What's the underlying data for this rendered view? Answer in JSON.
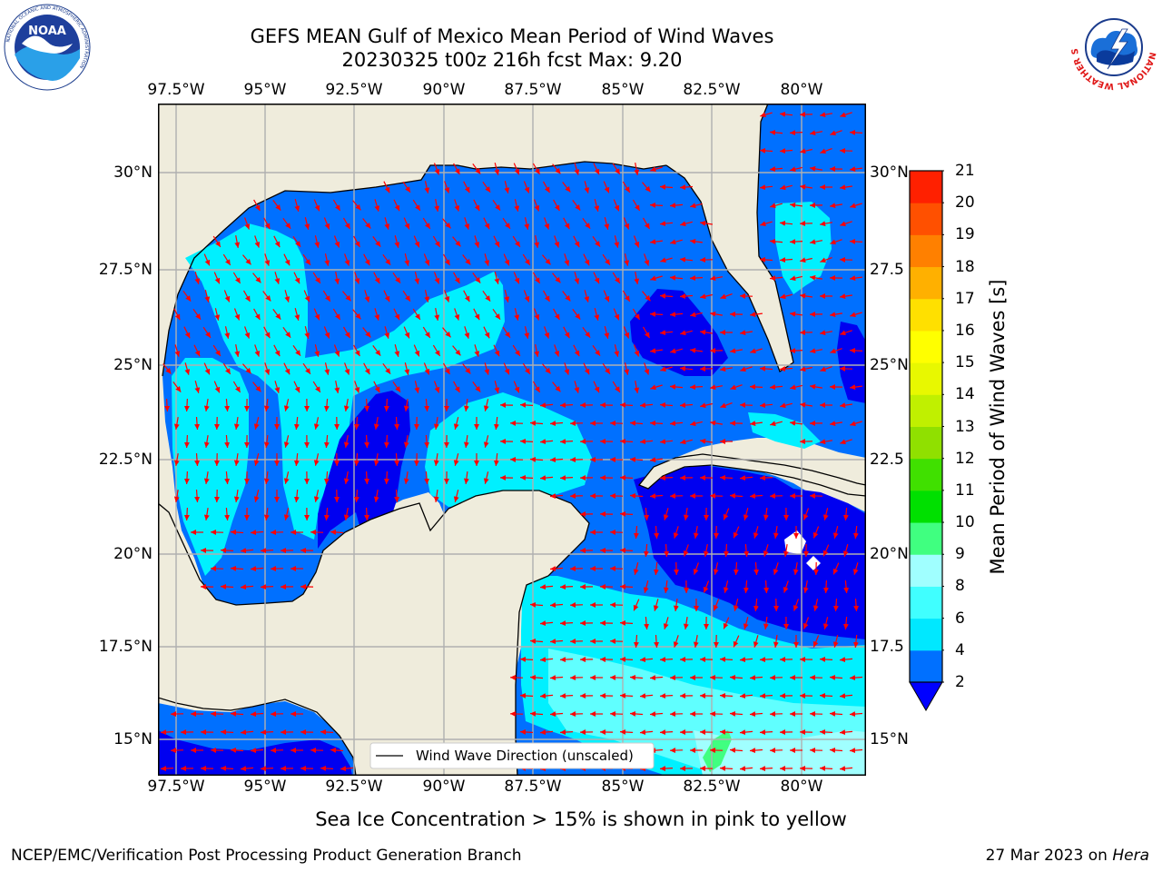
{
  "title": {
    "line1": "GEFS MEAN Gulf of Mexico Mean Period of Wind Waves",
    "line2": "20230325 t00z 216h fcst   Max: 9.20"
  },
  "axes": {
    "lon_ticks": [
      "97.5°W",
      "95°W",
      "92.5°W",
      "90°W",
      "87.5°W",
      "85°W",
      "82.5°W",
      "80°W"
    ],
    "lon_values": [
      -97.5,
      -95,
      -92.5,
      -90,
      -87.5,
      -85,
      -82.5,
      -80
    ],
    "lat_ticks": [
      "30°N",
      "27.5°N",
      "25°N",
      "22.5°N",
      "20°N",
      "17.5°N",
      "15°N"
    ],
    "lat_values": [
      30,
      27.5,
      25,
      22.5,
      20,
      17.5,
      15
    ],
    "right_lat_ticks": [
      "30°N",
      "27.5",
      "25°N",
      "22.5",
      "20°N",
      "17.5",
      "15°N"
    ],
    "lon_range": [
      -98,
      -78.2
    ],
    "lat_range": [
      14,
      31.6
    ],
    "grid": true
  },
  "colorbar": {
    "label": "Mean Period of Wind Waves [s]",
    "ticks": [
      "2",
      "4",
      "6",
      "8",
      "9",
      "10",
      "11",
      "12",
      "13",
      "14",
      "15",
      "16",
      "17",
      "18",
      "19",
      "20",
      "21"
    ],
    "levels": [
      2,
      4,
      6,
      8,
      9,
      10,
      11,
      12,
      13,
      14,
      15,
      16,
      17,
      18,
      19,
      20,
      21
    ],
    "colors": [
      "#0070ff",
      "#00e8ff",
      "#40ffff",
      "#a0ffff",
      "#40ff80",
      "#00e000",
      "#40e000",
      "#90e000",
      "#c0f000",
      "#e8f800",
      "#ffff00",
      "#ffe000",
      "#ffb000",
      "#ff8000",
      "#ff5000",
      "#ff2000",
      "#ff0000"
    ],
    "under_color": "#0000ff"
  },
  "legend": {
    "label": "Wind Wave Direction (unscaled)"
  },
  "colors": {
    "land": "#efecdc",
    "arrow": "#ff0000",
    "coast": "#000000",
    "grid": "#b0b0b0",
    "deep_blue": "#0000f0",
    "blue": "#0070ff",
    "cyan": "#00f0ff",
    "light_cyan": "#60ffff",
    "pale_cyan": "#a0ffff",
    "green": "#40ff80"
  },
  "subtitle": "Sea Ice Concentration > 15% is shown in pink to yellow",
  "footer": {
    "left": "NCEP/EMC/Verification Post Processing Product Generation Branch",
    "date": "27 Mar 2023 on ",
    "host": "Hera"
  },
  "logos": {
    "noaa": "NOAA",
    "noaa_ring": "NATIONAL OCEANIC AND ATMOSPHERIC ADMINISTRATION",
    "noaa_ring_bottom": "U.S. DEPARTMENT OF COMMERCE",
    "nws_ring": "NATIONAL WEATHER SERVICE"
  }
}
